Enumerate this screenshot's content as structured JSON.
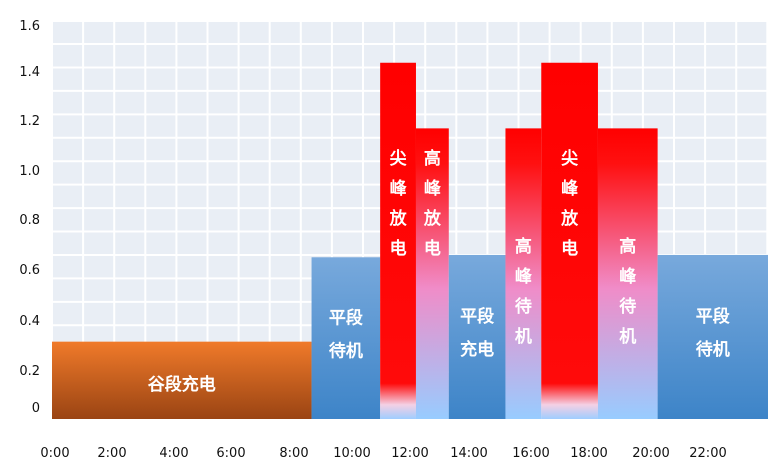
{
  "chart_data": {
    "type": "bar",
    "title": "",
    "xlabel": "",
    "ylabel": "",
    "ylim": [
      0,
      1.6
    ],
    "xlim": [
      0,
      24
    ],
    "grid": true,
    "ytick_labels": [
      "0",
      "0.2",
      "0.4",
      "0.6",
      "0.8",
      "1.0",
      "1.2",
      "1.4",
      "1.6"
    ],
    "ytick_values": [
      0,
      0.2,
      0.4,
      0.6,
      0.8,
      1.0,
      1.2,
      1.4,
      1.6
    ],
    "xtick_labels": [
      "0:00",
      "2:00",
      "4:00",
      "6:00",
      "8:00",
      "10:00",
      "12:00",
      "14:00",
      "16:00",
      "18:00",
      "20:00",
      "22:00"
    ],
    "xtick_values": [
      0,
      2,
      4,
      6,
      8,
      10,
      12,
      14,
      16,
      18,
      20,
      22
    ],
    "segments": [
      {
        "start": 0.0,
        "end": 8.7,
        "value": 0.33,
        "label": "谷段充电",
        "style": "valley"
      },
      {
        "start": 8.7,
        "end": 11.0,
        "value": 0.69,
        "label": "平段待机",
        "style": "flat"
      },
      {
        "start": 11.0,
        "end": 12.2,
        "value": 1.52,
        "label": "尖峰放电",
        "style": "sharp"
      },
      {
        "start": 12.2,
        "end": 13.3,
        "value": 1.24,
        "label": "高峰放电",
        "style": "peak"
      },
      {
        "start": 13.3,
        "end": 15.2,
        "value": 0.7,
        "label": "平段充电",
        "style": "flat"
      },
      {
        "start": 15.2,
        "end": 16.4,
        "value": 1.24,
        "label": "高峰待机",
        "style": "peak"
      },
      {
        "start": 16.4,
        "end": 18.3,
        "value": 1.52,
        "label": "尖峰放电",
        "style": "sharp"
      },
      {
        "start": 18.3,
        "end": 20.3,
        "value": 1.24,
        "label": "高峰待机",
        "style": "peak"
      },
      {
        "start": 20.3,
        "end": 24.0,
        "value": 0.7,
        "label": "平段待机",
        "style": "flat"
      }
    ]
  }
}
